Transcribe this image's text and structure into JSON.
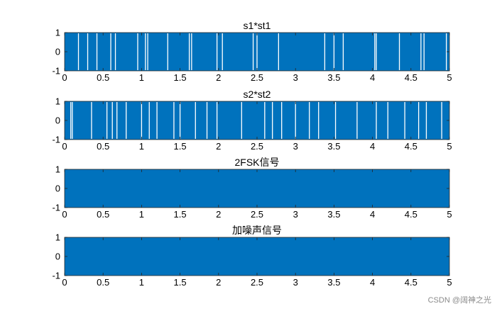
{
  "chart_data": [
    {
      "type": "line",
      "title": "s1*st1",
      "xlim": [
        0,
        5
      ],
      "ylim": [
        -1,
        1
      ],
      "xticks": [
        0,
        0.5,
        1,
        1.5,
        2,
        2.5,
        3,
        3.5,
        4,
        4.5,
        5
      ],
      "xtick_labels": [
        "0",
        "0.5",
        "1",
        "1.5",
        "2",
        "2.5",
        "3",
        "3.5",
        "4",
        "4.5",
        "5"
      ],
      "yticks": [
        -1,
        0,
        1
      ],
      "ytick_labels": [
        "-1",
        "0",
        "1"
      ],
      "grid": false,
      "color": "#0072BD",
      "gaps": [
        0.18,
        0.3,
        0.42,
        0.6,
        0.66,
        0.95,
        1.05,
        1.08,
        1.34,
        1.62,
        1.65,
        1.98,
        2.05,
        2.45,
        2.5,
        2.78,
        3.38,
        3.5,
        3.62,
        4.03,
        4.05,
        4.35,
        4.63,
        4.67,
        4.96
      ]
    },
    {
      "type": "line",
      "title": "s2*st2",
      "xlim": [
        0,
        5
      ],
      "ylim": [
        -1,
        1
      ],
      "xticks": [
        0,
        0.5,
        1,
        1.5,
        2,
        2.5,
        3,
        3.5,
        4,
        4.5,
        5
      ],
      "xtick_labels": [
        "0",
        "0.5",
        "1",
        "1.5",
        "2",
        "2.5",
        "3",
        "3.5",
        "4",
        "4.5",
        "5"
      ],
      "yticks": [
        -1,
        0,
        1
      ],
      "ytick_labels": [
        "-1",
        "0",
        "1"
      ],
      "grid": false,
      "color": "#0072BD",
      "gaps": [
        0.08,
        0.1,
        0.35,
        0.55,
        0.62,
        0.68,
        0.8,
        1.0,
        1.1,
        1.2,
        1.42,
        1.5,
        1.7,
        1.85,
        1.98,
        2.3,
        2.6,
        2.7,
        2.82,
        3.0,
        3.18,
        3.3,
        3.52,
        3.8,
        4.05,
        4.2,
        4.42,
        4.6,
        4.7,
        4.9
      ]
    },
    {
      "type": "line",
      "title": "2FSK信号",
      "xlim": [
        0,
        5
      ],
      "ylim": [
        -1,
        1
      ],
      "xticks": [
        0,
        0.5,
        1,
        1.5,
        2,
        2.5,
        3,
        3.5,
        4,
        4.5,
        5
      ],
      "xtick_labels": [
        "0",
        "0.5",
        "1",
        "1.5",
        "2",
        "2.5",
        "3",
        "3.5",
        "4",
        "4.5",
        "5"
      ],
      "yticks": [
        -1,
        0,
        1
      ],
      "ytick_labels": [
        "-1",
        "0",
        "1"
      ],
      "grid": false,
      "color": "#0072BD",
      "gaps": []
    },
    {
      "type": "line",
      "title": "加噪声信号",
      "xlim": [
        0,
        5
      ],
      "ylim": [
        -1,
        1
      ],
      "xticks": [
        0,
        0.5,
        1,
        1.5,
        2,
        2.5,
        3,
        3.5,
        4,
        4.5,
        5
      ],
      "xtick_labels": [
        "0",
        "0.5",
        "1",
        "1.5",
        "2",
        "2.5",
        "3",
        "3.5",
        "4",
        "4.5",
        "5"
      ],
      "yticks": [
        -1,
        0,
        1
      ],
      "ytick_labels": [
        "-1",
        "0",
        "1"
      ],
      "grid": false,
      "color": "#0072BD",
      "gaps": []
    }
  ],
  "watermark": "CSDN @阔神之光"
}
